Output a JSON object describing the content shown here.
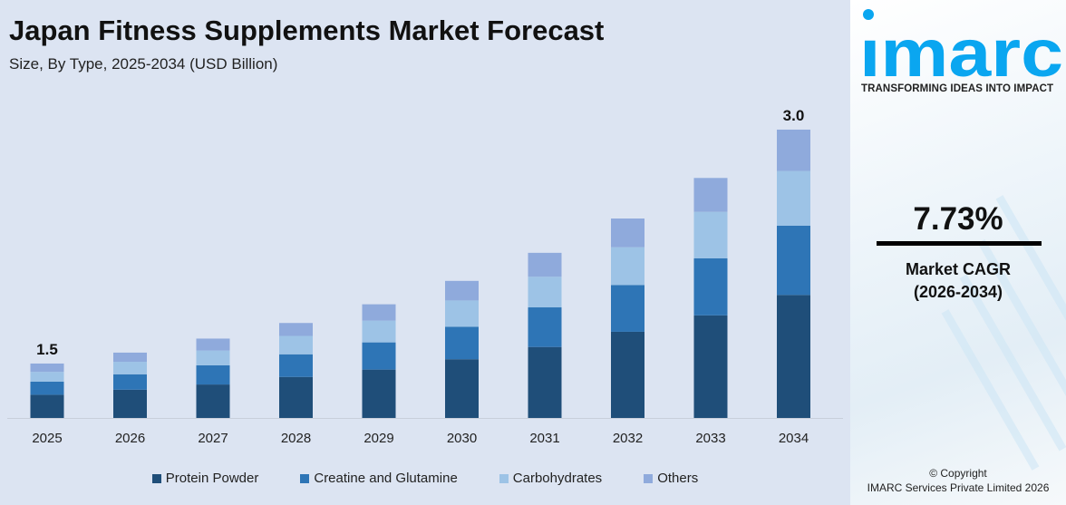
{
  "header": {
    "title": "Japan Fitness Supplements Market Forecast",
    "subtitle": "Size, By Type, 2025-2034 (USD Billion)"
  },
  "chart_data": {
    "type": "bar",
    "stacked": true,
    "title": "Japan Fitness Supplements Market Forecast",
    "subtitle": "Size, By Type, 2025-2034 (USD Billion)",
    "categories": [
      "2025",
      "2026",
      "2027",
      "2028",
      "2029",
      "2030",
      "2031",
      "2032",
      "2033",
      "2034"
    ],
    "series": [
      {
        "name": "Protein Powder",
        "color": "#1f4e79",
        "values": [
          0.64,
          0.68,
          0.7,
          0.76,
          0.8,
          0.87,
          0.95,
          1.05,
          1.15,
          1.28
        ]
      },
      {
        "name": "Creatine and Glutamine",
        "color": "#2e75b6",
        "values": [
          0.36,
          0.37,
          0.4,
          0.42,
          0.45,
          0.48,
          0.53,
          0.57,
          0.64,
          0.72
        ]
      },
      {
        "name": "Carbohydrates",
        "color": "#9dc3e6",
        "values": [
          0.27,
          0.3,
          0.31,
          0.34,
          0.36,
          0.39,
          0.41,
          0.46,
          0.52,
          0.57
        ]
      },
      {
        "name": "Others",
        "color": "#8faadc",
        "values": [
          0.23,
          0.22,
          0.25,
          0.24,
          0.27,
          0.29,
          0.32,
          0.35,
          0.38,
          0.43
        ]
      }
    ],
    "total_labels": [
      {
        "category": "2025",
        "label": "1.5"
      },
      {
        "category": "2034",
        "label": "3.0"
      }
    ],
    "xlabel": "",
    "ylabel": "",
    "grid": false,
    "legend_position": "bottom"
  },
  "sidebar": {
    "logo_text": "imarc",
    "tagline": "TRANSFORMING IDEAS INTO IMPACT",
    "cagr_value": "7.73%",
    "cagr_label": "Market CAGR",
    "cagr_period": "(2026-2034)",
    "copyright": "© Copyright",
    "company": "IMARC Services Private Limited 2026",
    "brand_color": "#0aa6f0"
  }
}
